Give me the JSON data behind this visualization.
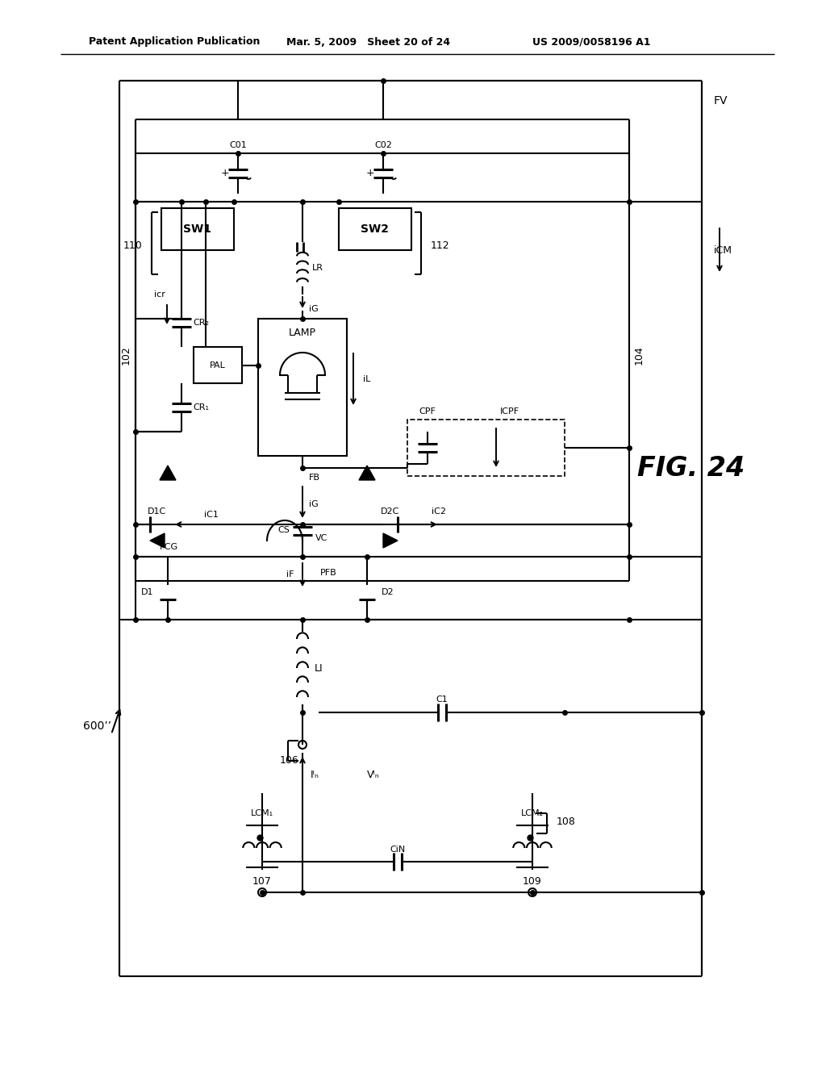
{
  "bg": "#ffffff",
  "lc": "#000000",
  "header_left": "Patent Application Publication",
  "header_mid": "Mar. 5, 2009   Sheet 20 of 24",
  "header_right": "US 2009/0058196 A1",
  "fig_label": "FIG. 24"
}
